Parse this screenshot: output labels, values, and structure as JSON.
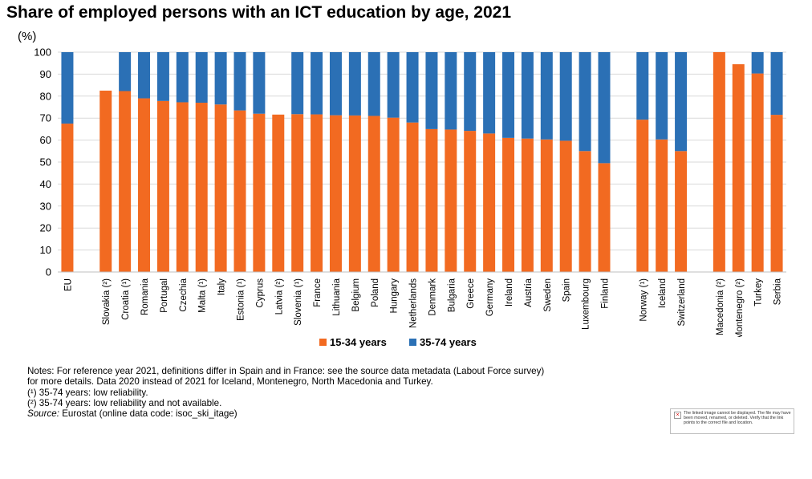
{
  "title": "Share of employed persons with an ICT education by age, 2021",
  "unit": "(%)",
  "legend": {
    "young": "15-34 years",
    "old": "35-74 years"
  },
  "colors": {
    "young": "#f26a21",
    "old": "#2b70b5",
    "grid": "#d9d9d9"
  },
  "notes": {
    "line1": "Notes: For reference year 2021, definitions differ in Spain and in France: see the source data metadata (Labout Force survey)",
    "line2": "for more details. Data 2020 instead of 2021 for Iceland, Montenegro, North Macedonia and Turkey.",
    "fn1": "(¹) 35-74 years: low reliability.",
    "fn2": "(²) 35-74 years: low reliability and not available.",
    "source_label": "Source:",
    "source_text": " Eurostat (online data code: isoc_ski_itage)"
  },
  "broken_image": {
    "text": "The linked image cannot be displayed. The file may have been moved, renamed, or deleted. Verify that the link points to the correct file and location."
  },
  "chart_data": {
    "type": "bar",
    "stacked": true,
    "title": "Share of employed persons with an ICT education by age, 2021",
    "ylabel": "(%)",
    "ylim": [
      0,
      100
    ],
    "yticks": [
      0,
      10,
      20,
      30,
      40,
      50,
      60,
      70,
      80,
      90,
      100
    ],
    "grid": true,
    "legend_position": "bottom",
    "categories": [
      "EU",
      "",
      "Slovakia (²)",
      "Croatia (¹)",
      "Romania",
      "Portugal",
      "Czechia",
      "Malta (¹)",
      "Italy",
      "Estonia (¹)",
      "Cyprus",
      "Latvia (²)",
      "Slovenia (¹)",
      "France",
      "Lithuania",
      "Belgium",
      "Poland",
      "Hungary",
      "Netherlands",
      "Denmark",
      "Bulgaria",
      "Greece",
      "Germany",
      "Ireland",
      "Austria",
      "Sweden",
      "Spain",
      "Luxembourg",
      "Finland",
      "",
      "Norway (¹)",
      "Iceland",
      "Switzerland",
      "",
      "North Macedonia (²)",
      "Montenegro (²)",
      "Turkey",
      "Serbia"
    ],
    "series": [
      {
        "name": "15-34 years",
        "values": [
          67.5,
          null,
          82.5,
          82.3,
          79,
          77.8,
          77.2,
          77,
          76.2,
          73.5,
          72,
          71.6,
          71.8,
          71.7,
          71.3,
          71.2,
          71,
          70.2,
          68,
          65,
          64.8,
          64.2,
          63,
          61,
          60.7,
          60.3,
          59.7,
          55,
          49.5,
          null,
          69.3,
          60.3,
          55,
          null,
          100,
          94.5,
          90.3,
          71.5
        ]
      },
      {
        "name": "35-74 years",
        "values": [
          32.5,
          null,
          null,
          17.7,
          21,
          22.2,
          22.8,
          23,
          23.8,
          26.5,
          28,
          null,
          28.2,
          28.3,
          28.7,
          28.8,
          29,
          29.8,
          32,
          35,
          35.2,
          35.8,
          37,
          39,
          39.3,
          39.7,
          40.3,
          45,
          50.5,
          null,
          30.7,
          39.7,
          45,
          null,
          null,
          null,
          9.7,
          28.5
        ]
      }
    ]
  }
}
